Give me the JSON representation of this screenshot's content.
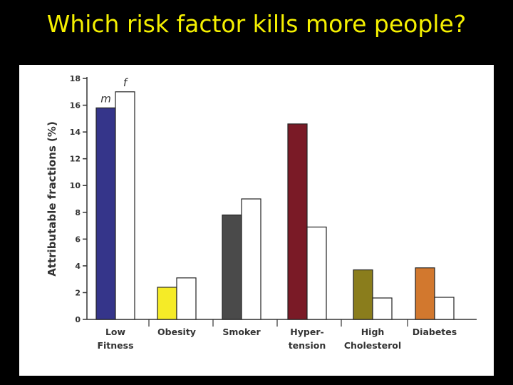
{
  "slide": {
    "title": "Which risk factor kills more people?"
  },
  "chart_data": {
    "type": "bar",
    "title": "",
    "ylabel": "Attributable fractions (%)",
    "xlabel": "",
    "ylim": [
      0,
      18
    ],
    "yticks": [
      0,
      2,
      4,
      6,
      8,
      10,
      12,
      14,
      16,
      18
    ],
    "grid": false,
    "categories": [
      [
        "Low",
        "Fitness"
      ],
      [
        "Obesity"
      ],
      [
        "Smoker"
      ],
      [
        "Hyper-",
        "tension"
      ],
      [
        "High",
        "Cholesterol"
      ],
      [
        "Diabetes"
      ]
    ],
    "series": [
      {
        "name": "m",
        "values": [
          15.8,
          2.4,
          7.8,
          14.6,
          3.7,
          3.85
        ],
        "colors": [
          "#35358a",
          "#f5eb27",
          "#4a4a4a",
          "#7a1a26",
          "#8a7d1c",
          "#d2782e"
        ]
      },
      {
        "name": "f",
        "values": [
          17.0,
          3.1,
          9.0,
          6.9,
          1.6,
          1.65
        ],
        "colors": [
          "#ffffff",
          "#ffffff",
          "#ffffff",
          "#ffffff",
          "#ffffff",
          "#ffffff"
        ]
      }
    ]
  }
}
